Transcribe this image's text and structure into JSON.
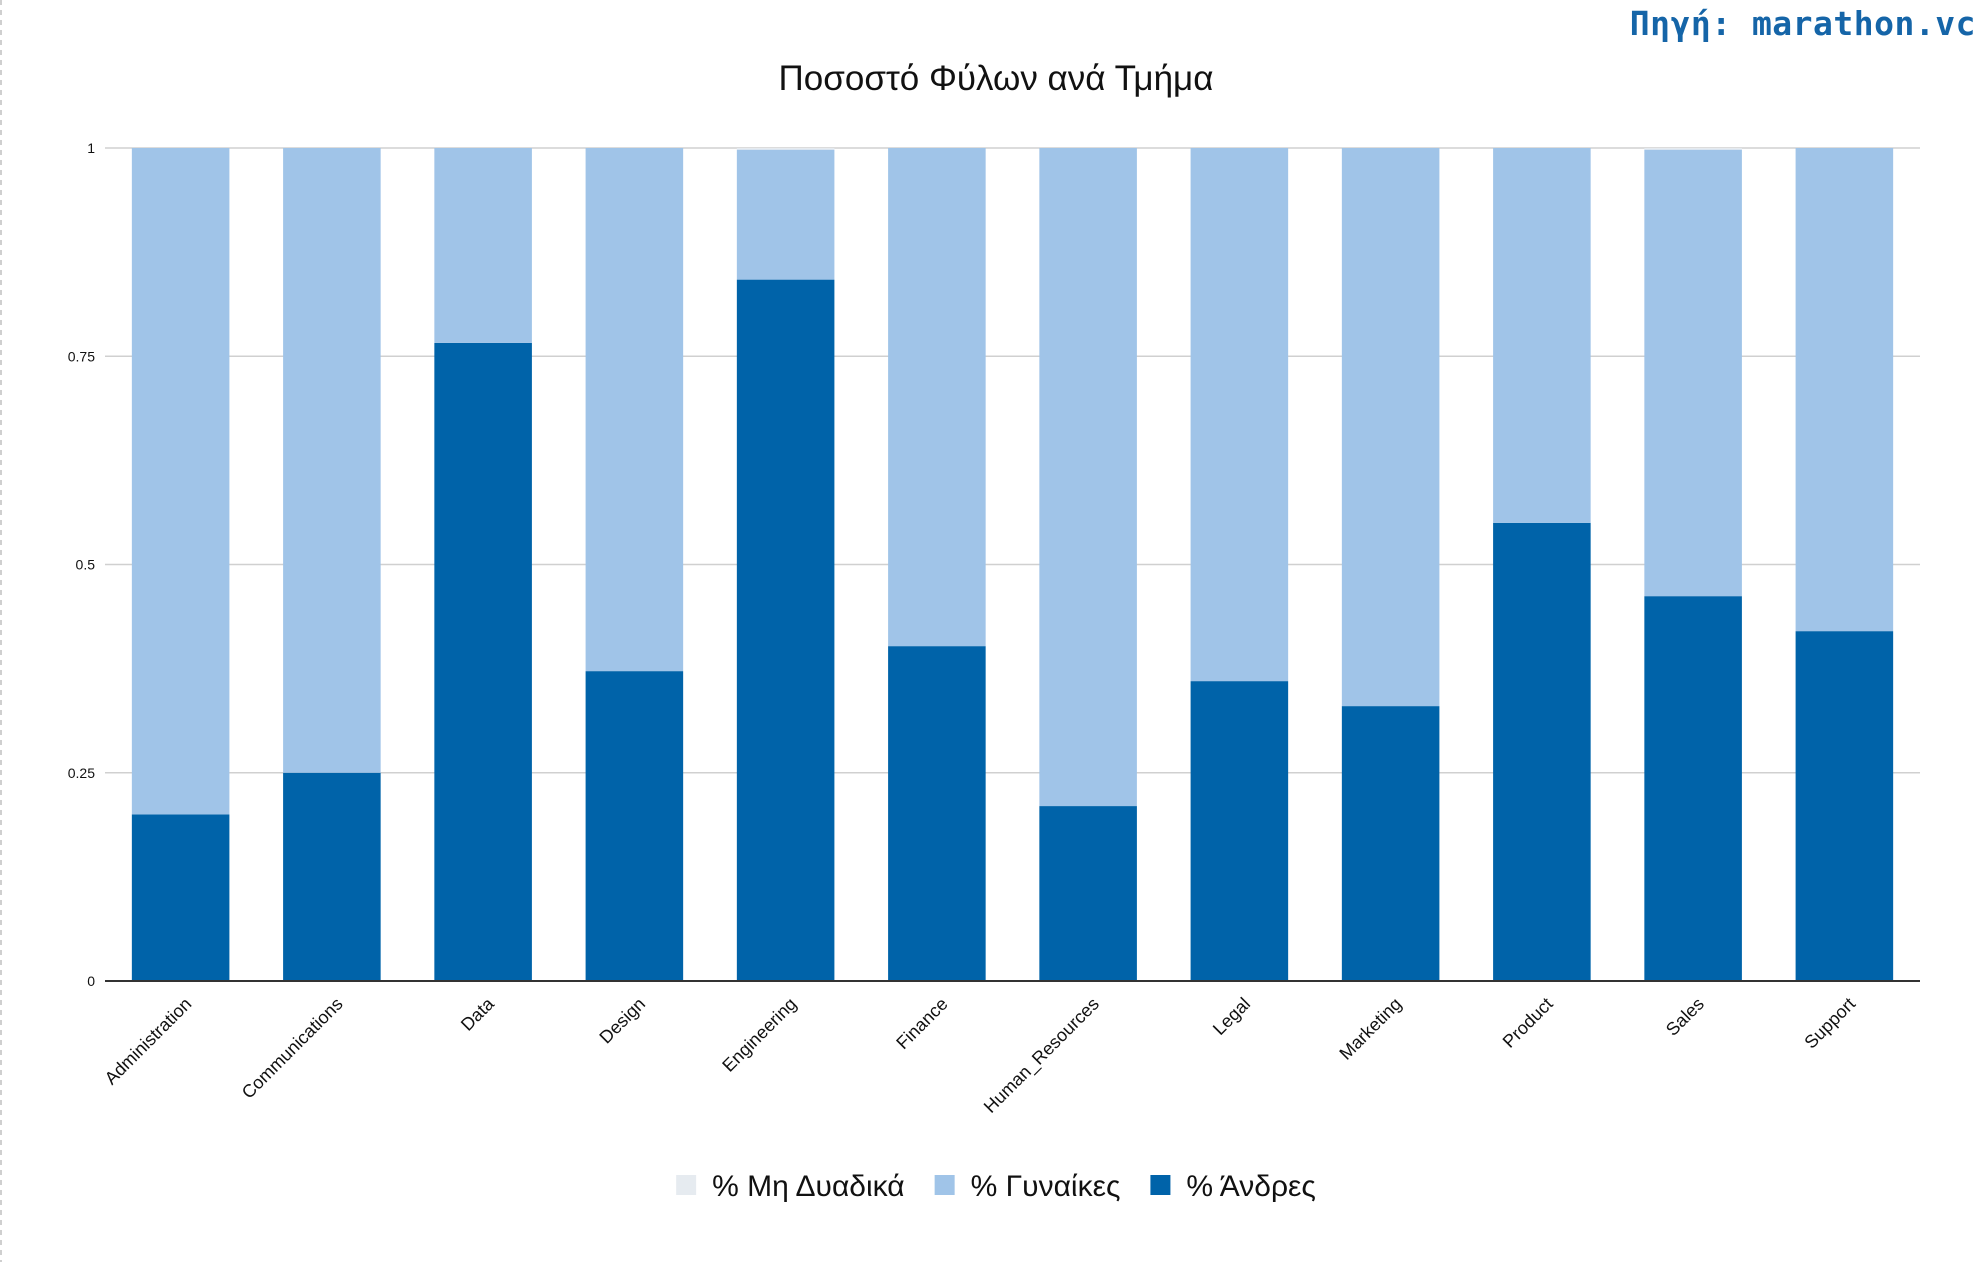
{
  "source_label": "Πηγή: marathon.vc",
  "colors": {
    "men": "#0063a9",
    "women": "#a0c4e8",
    "nonbinary": "#e6ebf0",
    "grid": "#d0d0d0",
    "axis": "#333333",
    "text": "#111111",
    "source": "#1565a8"
  },
  "chart_data": {
    "type": "bar",
    "stacked": true,
    "title": "Ποσοστό Φύλων ανά Τμήμα",
    "xlabel": "",
    "ylabel": "",
    "ylim": [
      0,
      1
    ],
    "yticks": [
      {
        "value": 0,
        "label": "0"
      },
      {
        "value": 0.25,
        "label": "0.25"
      },
      {
        "value": 0.5,
        "label": "0.5"
      },
      {
        "value": 0.75,
        "label": "0.75"
      },
      {
        "value": 1,
        "label": "1"
      }
    ],
    "grid": true,
    "legend_position": "bottom",
    "categories": [
      "Administration",
      "Communications",
      "Data",
      "Design",
      "Engineering",
      "Finance",
      "Human_Resources",
      "Legal",
      "Marketing",
      "Product",
      "Sales",
      "Support"
    ],
    "series": [
      {
        "name": "% Άνδρες",
        "color_key": "men",
        "values": [
          0.2,
          0.25,
          0.766,
          0.372,
          0.842,
          0.402,
          0.21,
          0.36,
          0.33,
          0.55,
          0.462,
          0.42
        ]
      },
      {
        "name": "% Γυναίκες",
        "color_key": "women",
        "values": [
          0.8,
          0.75,
          0.234,
          0.628,
          0.156,
          0.598,
          0.79,
          0.64,
          0.67,
          0.45,
          0.536,
          0.58
        ]
      },
      {
        "name": "% Μη Δυαδικά",
        "color_key": "nonbinary",
        "values": [
          0,
          0,
          0,
          0,
          0.002,
          0,
          0,
          0,
          0,
          0,
          0.002,
          0
        ]
      }
    ],
    "legend_order": [
      "% Μη Δυαδικά",
      "% Γυναίκες",
      "% Άνδρες"
    ]
  }
}
